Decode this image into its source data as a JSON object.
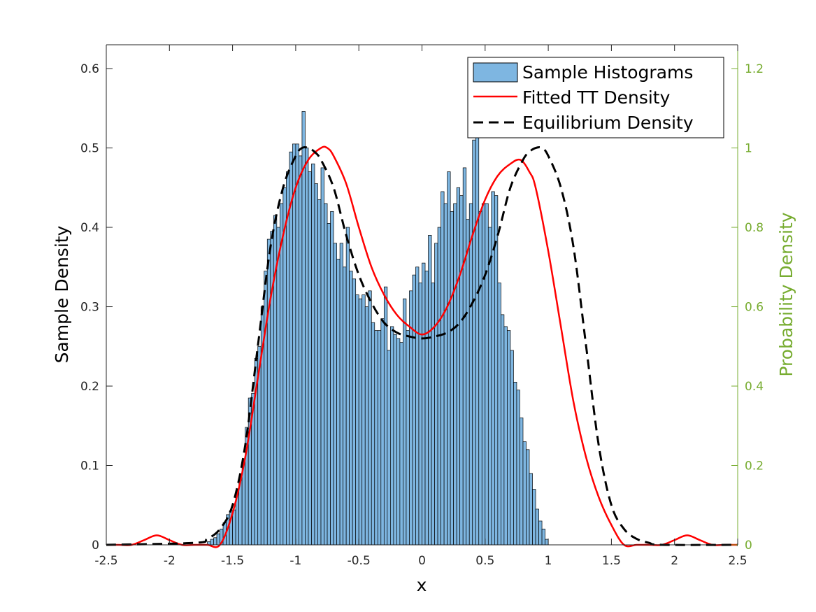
{
  "chart_data": {
    "type": "bar",
    "xlabel": "x",
    "ylabel": "Sample Density",
    "y2label": "Probability Density",
    "xlim": [
      -2.5,
      2.5
    ],
    "ylim": [
      0,
      0.63
    ],
    "y2lim": [
      0,
      1.26
    ],
    "xticks": [
      -2.5,
      -2,
      -1.5,
      -1,
      -0.5,
      0,
      0.5,
      1,
      1.5,
      2,
      2.5
    ],
    "xtick_labels": [
      "-2.5",
      "-2",
      "-1.5",
      "-1",
      "-0.5",
      "0",
      "0.5",
      "1",
      "1.5",
      "2",
      "2.5"
    ],
    "yticks": [
      0,
      0.1,
      0.2,
      0.3,
      0.4,
      0.5,
      0.6
    ],
    "ytick_labels": [
      "0",
      "0.1",
      "0.2",
      "0.3",
      "0.4",
      "0.5",
      "0.6"
    ],
    "y2ticks": [
      0,
      0.2,
      0.4,
      0.6,
      0.8,
      1,
      1.2
    ],
    "y2tick_labels": [
      "0",
      "0.2",
      "0.4",
      "0.6",
      "0.8",
      "1",
      "1.2"
    ],
    "grid": false,
    "legend_position": "top-right",
    "colors": {
      "bars": "#7EB6E1",
      "bar_edge": "#000000",
      "fitted": "#FF0000",
      "equilibrium": "#000000",
      "right_axis": "#77AC30"
    },
    "histogram": {
      "name": "Sample Histograms",
      "bin_start": -1.7,
      "bin_width": 0.025,
      "values": [
        0.004,
        0.007,
        0.009,
        0.014,
        0.02,
        0.028,
        0.038,
        0.043,
        0.044,
        0.068,
        0.082,
        0.105,
        0.148,
        0.185,
        0.191,
        0.235,
        0.25,
        0.3,
        0.345,
        0.385,
        0.395,
        0.415,
        0.4,
        0.43,
        0.45,
        0.47,
        0.495,
        0.505,
        0.505,
        0.49,
        0.546,
        0.5,
        0.47,
        0.48,
        0.455,
        0.435,
        0.475,
        0.43,
        0.405,
        0.42,
        0.38,
        0.36,
        0.38,
        0.35,
        0.4,
        0.345,
        0.335,
        0.315,
        0.31,
        0.315,
        0.3,
        0.32,
        0.28,
        0.27,
        0.27,
        0.285,
        0.325,
        0.245,
        0.275,
        0.265,
        0.26,
        0.255,
        0.31,
        0.27,
        0.32,
        0.34,
        0.35,
        0.33,
        0.355,
        0.345,
        0.39,
        0.33,
        0.38,
        0.4,
        0.445,
        0.43,
        0.47,
        0.42,
        0.43,
        0.45,
        0.44,
        0.475,
        0.41,
        0.43,
        0.51,
        0.52,
        0.42,
        0.43,
        0.43,
        0.4,
        0.445,
        0.44,
        0.33,
        0.29,
        0.275,
        0.27,
        0.245,
        0.205,
        0.195,
        0.16,
        0.13,
        0.12,
        0.09,
        0.07,
        0.045,
        0.03,
        0.02,
        0.007
      ]
    },
    "series": [
      {
        "name": "Fitted TT Density",
        "axis": "right",
        "x": [
          -2.5,
          -2.4,
          -2.3,
          -2.2,
          -2.1,
          -2.0,
          -1.9,
          -1.8,
          -1.7,
          -1.6,
          -1.5,
          -1.4,
          -1.3,
          -1.2,
          -1.1,
          -1.0,
          -0.9,
          -0.8,
          -0.75,
          -0.7,
          -0.6,
          -0.5,
          -0.4,
          -0.3,
          -0.2,
          -0.1,
          0,
          0.1,
          0.2,
          0.3,
          0.4,
          0.5,
          0.6,
          0.7,
          0.78,
          0.85,
          0.9,
          1.0,
          1.1,
          1.2,
          1.3,
          1.4,
          1.5,
          1.6,
          1.7,
          1.8,
          1.9,
          2.0,
          2.1,
          2.2,
          2.3,
          2.4,
          2.5
        ],
        "y": [
          0,
          0,
          0,
          0.012,
          0.024,
          0.012,
          0,
          0,
          0,
          0,
          0.08,
          0.22,
          0.42,
          0.62,
          0.78,
          0.9,
          0.97,
          1.0,
          1.0,
          0.98,
          0.91,
          0.8,
          0.7,
          0.63,
          0.58,
          0.55,
          0.53,
          0.55,
          0.6,
          0.68,
          0.78,
          0.87,
          0.93,
          0.96,
          0.97,
          0.94,
          0.9,
          0.74,
          0.55,
          0.36,
          0.22,
          0.12,
          0.05,
          0,
          0,
          0,
          0,
          0.012,
          0.024,
          0.012,
          0,
          0,
          0
        ]
      },
      {
        "name": "Equilibrium Density",
        "axis": "right",
        "x": [
          -2.5,
          -1.8,
          -1.7,
          -1.6,
          -1.5,
          -1.4,
          -1.3,
          -1.2,
          -1.1,
          -1.0,
          -0.95,
          -0.9,
          -0.85,
          -0.8,
          -0.7,
          -0.6,
          -0.5,
          -0.4,
          -0.3,
          -0.2,
          -0.1,
          0,
          0.1,
          0.2,
          0.3,
          0.4,
          0.5,
          0.6,
          0.7,
          0.8,
          0.85,
          0.9,
          0.95,
          1.0,
          1.1,
          1.2,
          1.3,
          1.4,
          1.5,
          1.6,
          1.7,
          1.8,
          1.9,
          2.5
        ],
        "y": [
          0,
          0.005,
          0.015,
          0.04,
          0.1,
          0.25,
          0.5,
          0.75,
          0.9,
          0.98,
          1.0,
          1.0,
          0.99,
          0.97,
          0.9,
          0.78,
          0.68,
          0.61,
          0.56,
          0.535,
          0.525,
          0.52,
          0.525,
          0.535,
          0.56,
          0.61,
          0.68,
          0.78,
          0.9,
          0.97,
          0.99,
          1.0,
          1.0,
          0.98,
          0.9,
          0.75,
          0.5,
          0.25,
          0.1,
          0.04,
          0.015,
          0.005,
          0,
          0
        ]
      }
    ]
  }
}
